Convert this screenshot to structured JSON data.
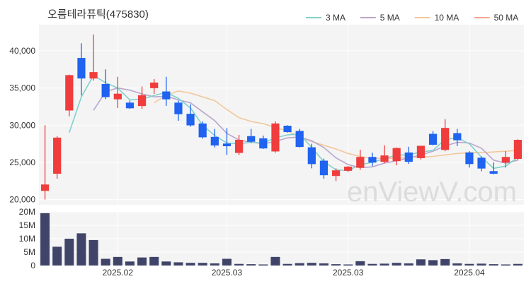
{
  "title": "오름테라퓨틱(475830)",
  "watermark": "enViewV.com",
  "colors": {
    "up": "#f03c3c",
    "down": "#1f63f0",
    "volume": "#3f4468",
    "ma3": "#7fd1cc",
    "ma5": "#b9a6cf",
    "ma10": "#f2c89a",
    "ma50": "#f5a48f",
    "plot_bg": "#f4f4f4",
    "grid": "#ffffff"
  },
  "chart_data": {
    "type": "candlestick",
    "legend_position": "top-right",
    "legend": [
      {
        "name": "3 MA",
        "color_key": "ma3"
      },
      {
        "name": "5 MA",
        "color_key": "ma5"
      },
      {
        "name": "10 MA",
        "color_key": "ma10"
      },
      {
        "name": "50 MA",
        "color_key": "ma50"
      }
    ],
    "price_axis": {
      "ylim": [
        19300,
        43500
      ],
      "ticks": [
        20000,
        25000,
        30000,
        35000,
        40000
      ],
      "tick_labels": [
        "20,000",
        "25,000",
        "30,000",
        "35,000",
        "40,000"
      ]
    },
    "volume_axis": {
      "ylim": [
        0,
        20000000
      ],
      "ticks": [
        0,
        5000000,
        10000000,
        15000000,
        20000000
      ],
      "tick_labels": [
        "0",
        "5M",
        "10M",
        "15M",
        "20M"
      ]
    },
    "x_tick_labels": [
      {
        "index": 6,
        "label": "2025.02"
      },
      {
        "index": 15,
        "label": "2025.03"
      },
      {
        "index": 25,
        "label": "2025.03"
      },
      {
        "index": 35,
        "label": "2025.04"
      }
    ],
    "candles": [
      {
        "o": 21200,
        "h": 30000,
        "l": 20000,
        "c": 22000,
        "v": 19500000
      },
      {
        "o": 23500,
        "h": 28500,
        "l": 22800,
        "c": 28300,
        "v": 7000000
      },
      {
        "o": 32000,
        "h": 36800,
        "l": 31200,
        "c": 36700,
        "v": 10000000
      },
      {
        "o": 39000,
        "h": 41000,
        "l": 34000,
        "c": 36300,
        "v": 12000000
      },
      {
        "o": 36300,
        "h": 42200,
        "l": 36000,
        "c": 37100,
        "v": 9500000
      },
      {
        "o": 35500,
        "h": 37500,
        "l": 33500,
        "c": 33800,
        "v": 2500000
      },
      {
        "o": 33500,
        "h": 36500,
        "l": 32300,
        "c": 34200,
        "v": 3200000
      },
      {
        "o": 33000,
        "h": 33300,
        "l": 32200,
        "c": 32300,
        "v": 1500000
      },
      {
        "o": 32600,
        "h": 35200,
        "l": 32200,
        "c": 34000,
        "v": 3000000
      },
      {
        "o": 35000,
        "h": 36200,
        "l": 34200,
        "c": 35700,
        "v": 3200000
      },
      {
        "o": 34500,
        "h": 36500,
        "l": 32600,
        "c": 33500,
        "v": 1500000
      },
      {
        "o": 33000,
        "h": 33300,
        "l": 30600,
        "c": 31500,
        "v": 1200000
      },
      {
        "o": 31500,
        "h": 32800,
        "l": 29800,
        "c": 30000,
        "v": 1000000
      },
      {
        "o": 30200,
        "h": 30500,
        "l": 28200,
        "c": 28400,
        "v": 1000000
      },
      {
        "o": 28400,
        "h": 29500,
        "l": 27000,
        "c": 27300,
        "v": 800000
      },
      {
        "o": 27500,
        "h": 29600,
        "l": 26000,
        "c": 27200,
        "v": 2500000
      },
      {
        "o": 26300,
        "h": 28700,
        "l": 26000,
        "c": 28000,
        "v": 600000
      },
      {
        "o": 28500,
        "h": 29500,
        "l": 27600,
        "c": 27800,
        "v": 500000
      },
      {
        "o": 28200,
        "h": 28600,
        "l": 26800,
        "c": 26900,
        "v": 400000
      },
      {
        "o": 26500,
        "h": 30500,
        "l": 26300,
        "c": 30200,
        "v": 3200000
      },
      {
        "o": 29900,
        "h": 30000,
        "l": 29000,
        "c": 29100,
        "v": 600000
      },
      {
        "o": 29200,
        "h": 29500,
        "l": 27000,
        "c": 27100,
        "v": 900000
      },
      {
        "o": 27000,
        "h": 27500,
        "l": 24200,
        "c": 24800,
        "v": 1000000
      },
      {
        "o": 25200,
        "h": 25500,
        "l": 22800,
        "c": 23300,
        "v": 800000
      },
      {
        "o": 23200,
        "h": 24200,
        "l": 22500,
        "c": 23900,
        "v": 500000
      },
      {
        "o": 23900,
        "h": 24500,
        "l": 23700,
        "c": 24400,
        "v": 400000
      },
      {
        "o": 24300,
        "h": 26700,
        "l": 24000,
        "c": 25700,
        "v": 1600000
      },
      {
        "o": 25700,
        "h": 26300,
        "l": 24500,
        "c": 25000,
        "v": 600000
      },
      {
        "o": 25100,
        "h": 27300,
        "l": 24900,
        "c": 25900,
        "v": 700000
      },
      {
        "o": 25200,
        "h": 27000,
        "l": 24600,
        "c": 26900,
        "v": 1000000
      },
      {
        "o": 26300,
        "h": 27100,
        "l": 24800,
        "c": 25100,
        "v": 800000
      },
      {
        "o": 25600,
        "h": 27200,
        "l": 25400,
        "c": 27200,
        "v": 2300000
      },
      {
        "o": 28800,
        "h": 29200,
        "l": 27300,
        "c": 27400,
        "v": 2000000
      },
      {
        "o": 26700,
        "h": 30800,
        "l": 26500,
        "c": 29600,
        "v": 2400000
      },
      {
        "o": 28900,
        "h": 29500,
        "l": 27200,
        "c": 28000,
        "v": 800000
      },
      {
        "o": 26300,
        "h": 26500,
        "l": 24300,
        "c": 24800,
        "v": 600000
      },
      {
        "o": 25600,
        "h": 25800,
        "l": 23800,
        "c": 24200,
        "v": 700000
      },
      {
        "o": 23800,
        "h": 25000,
        "l": 23400,
        "c": 23500,
        "v": 500000
      },
      {
        "o": 25000,
        "h": 26500,
        "l": 24300,
        "c": 25700,
        "v": 400000
      },
      {
        "o": 25500,
        "h": 28100,
        "l": 25300,
        "c": 28000,
        "v": 600000
      }
    ],
    "moving_averages": {
      "ma3": [
        null,
        null,
        29000,
        33800,
        36700,
        35700,
        35000,
        33400,
        33500,
        34000,
        34400,
        33600,
        32300,
        30000,
        28600,
        27600,
        27500,
        27700,
        27600,
        28300,
        28700,
        28800,
        27000,
        25100,
        24000,
        23900,
        24700,
        25000,
        25500,
        26000,
        26000,
        26400,
        26600,
        28100,
        28300,
        27500,
        25700,
        24200,
        24500,
        25700
      ],
      "ma5": [
        null,
        null,
        null,
        null,
        32000,
        34500,
        35000,
        34700,
        34200,
        33800,
        33900,
        33400,
        33000,
        31800,
        30600,
        28900,
        28000,
        27700,
        27500,
        27800,
        28300,
        28400,
        27900,
        27000,
        25600,
        24700,
        24300,
        24400,
        24900,
        25200,
        25600,
        26000,
        26500,
        27200,
        27700,
        27600,
        26900,
        25300,
        24900,
        25300
      ],
      "ma10": [
        null,
        null,
        null,
        null,
        null,
        null,
        null,
        null,
        null,
        33000,
        34000,
        34600,
        34300,
        33800,
        33300,
        32100,
        31000,
        30500,
        30200,
        29700,
        29200,
        28400,
        27800,
        27300,
        26800,
        26200,
        25800,
        25500,
        25600,
        25500,
        25700,
        25700,
        25800,
        26000,
        26200,
        26300,
        26300,
        26400,
        26500,
        26600
      ],
      "ma50": [
        null,
        null,
        null,
        null,
        null,
        null,
        null,
        null,
        null,
        null,
        null,
        null,
        null,
        null,
        null,
        null,
        null,
        null,
        null,
        null,
        null,
        null,
        null,
        null,
        null,
        null,
        null,
        null,
        null,
        null,
        null,
        null,
        null,
        null,
        null,
        null,
        null,
        null,
        null,
        25700
      ]
    }
  }
}
